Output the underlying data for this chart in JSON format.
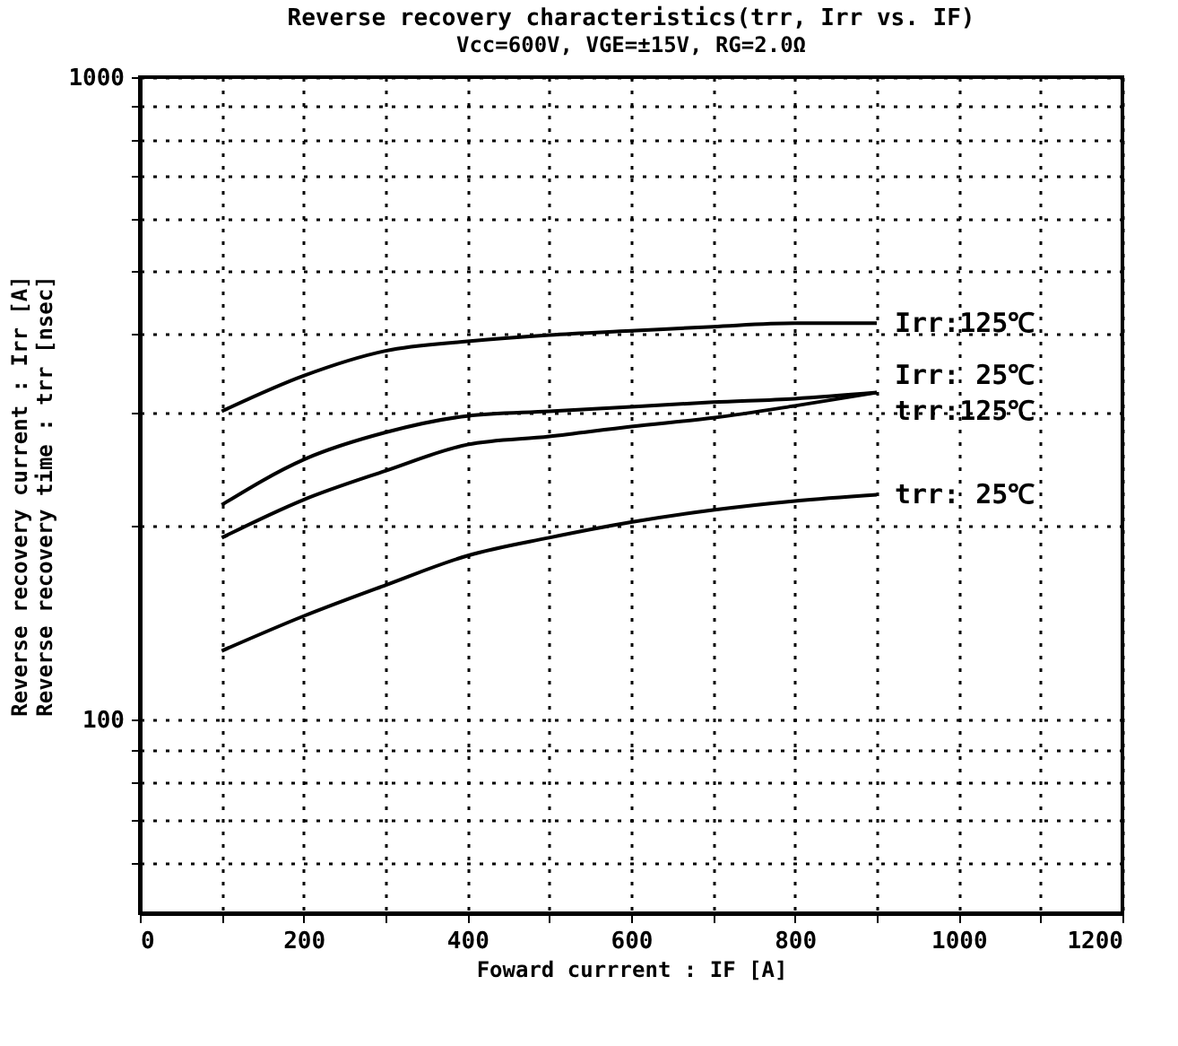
{
  "chart_data": {
    "type": "line",
    "title": "Reverse recovery characteristics(trr, Irr vs.  IF)",
    "subtitle": "Vcc=600V, VGE=±15V, RG=2.0Ω",
    "xlabel": "Foward currrent : IF [A]",
    "ylabel": "Reverse recovery current : Irr [A]\nReverse recovery time : trr [nsec]",
    "x": [
      100,
      200,
      300,
      400,
      500,
      600,
      700,
      800,
      900
    ],
    "series": [
      {
        "name": "Irr:125℃",
        "color": "#000000",
        "values": [
          302,
          343,
          375,
          388,
          397,
          403,
          409,
          414,
          414
        ]
      },
      {
        "name": "Irr: 25℃",
        "color": "#000000",
        "values": [
          216,
          254,
          280,
          297,
          302,
          307,
          312,
          316,
          323
        ]
      },
      {
        "name": "trr:125℃",
        "color": "#000000",
        "values": [
          192,
          220,
          244,
          268,
          276,
          286,
          295,
          308,
          323
        ]
      },
      {
        "name": "trr: 25℃",
        "color": "#000000",
        "values": [
          128,
          145,
          162,
          180,
          192,
          203,
          212,
          219,
          224
        ]
      }
    ],
    "xlim": [
      0,
      1200
    ],
    "xticks": [
      0,
      {
        "value": 100,
        "label": null
      },
      200,
      {
        "value": 300,
        "label": null
      },
      400,
      {
        "value": 500,
        "label": null
      },
      600,
      {
        "value": 700,
        "label": null
      },
      800,
      {
        "value": 900,
        "label": null
      },
      1000,
      {
        "value": 1100,
        "label": null
      },
      1200
    ],
    "ylim": [
      50,
      1000
    ],
    "yticks": [
      {
        "value": 60,
        "label": null
      },
      {
        "value": 70,
        "label": null
      },
      {
        "value": 80,
        "label": null
      },
      {
        "value": 90,
        "label": null
      },
      100,
      {
        "value": 200,
        "label": null
      },
      {
        "value": 300,
        "label": null
      },
      {
        "value": 400,
        "label": null
      },
      {
        "value": 500,
        "label": null
      },
      {
        "value": 600,
        "label": null
      },
      {
        "value": 700,
        "label": null
      },
      {
        "value": 800,
        "label": null
      },
      {
        "value": 900,
        "label": null
      },
      1000
    ],
    "log": true,
    "grid": true,
    "legend": false,
    "marker": "none",
    "line_style": "solid"
  }
}
